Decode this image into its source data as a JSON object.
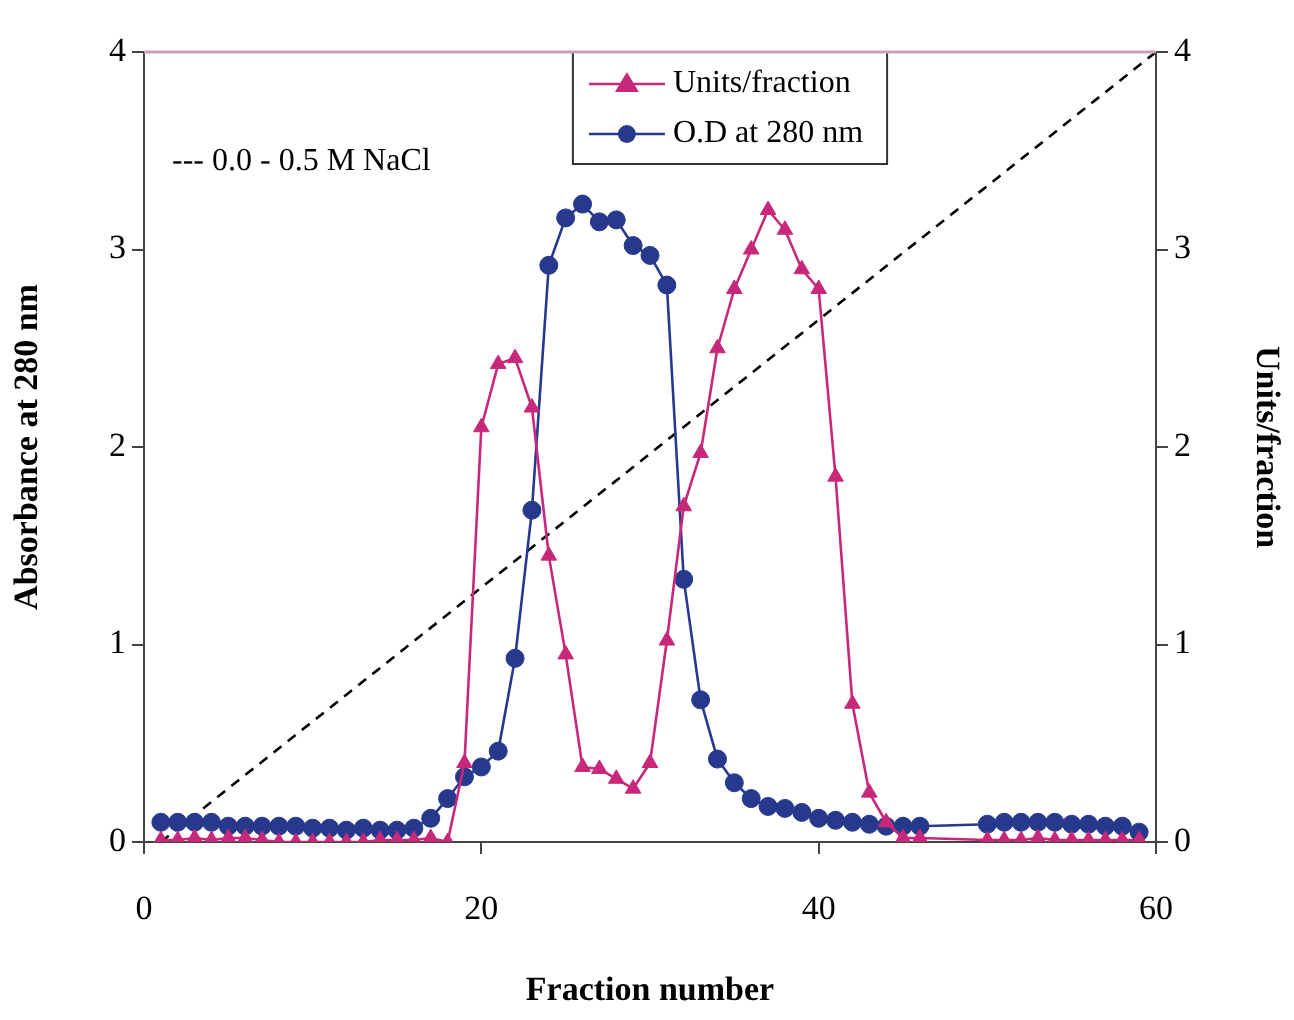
{
  "chart_data": {
    "type": "line",
    "xlabel": "Fraction number",
    "ylabel": "Absorbance at 280 nm",
    "y2label": "Units/fraction",
    "annotations": [
      "--- 0.0 - 0.5 M NaCl"
    ],
    "xlim": [
      0,
      60
    ],
    "xticks": [
      0,
      20,
      40,
      60
    ],
    "ylim": [
      0,
      4
    ],
    "yticks": [
      0,
      1,
      2,
      3,
      4
    ],
    "y2lim": [
      0,
      4
    ],
    "y2ticks": [
      0,
      1,
      2,
      3,
      4
    ],
    "grid": false,
    "legend": "top",
    "series": [
      {
        "name": "Units/fraction",
        "color": "#c8287a",
        "axis": "y2",
        "marker": "triangle",
        "x": [
          1,
          2,
          3,
          4,
          5,
          6,
          7,
          8,
          9,
          10,
          11,
          12,
          13,
          14,
          15,
          16,
          17,
          18,
          19,
          20,
          21,
          22,
          23,
          24,
          25,
          26,
          27,
          28,
          29,
          30,
          31,
          32,
          33,
          34,
          35,
          36,
          37,
          38,
          39,
          40,
          41,
          42,
          43,
          44,
          45,
          46,
          50,
          51,
          52,
          53,
          54,
          55,
          56,
          57,
          58,
          59
        ],
        "values": [
          0.01,
          0.01,
          0.02,
          0.01,
          0.02,
          0.02,
          0.01,
          0,
          0,
          0,
          0,
          0,
          0,
          0.01,
          0.01,
          0.01,
          0.02,
          0,
          0.4,
          2.1,
          2.42,
          2.45,
          2.2,
          1.45,
          0.95,
          0.38,
          0.37,
          0.32,
          0.27,
          0.4,
          1.02,
          1.7,
          1.97,
          2.5,
          2.8,
          3.0,
          3.2,
          3.1,
          2.9,
          2.8,
          1.85,
          0.7,
          0.25,
          0.1,
          0.02,
          0.02,
          0.01,
          0.01,
          0.01,
          0.02,
          0.01,
          0.01,
          0.01,
          0.01,
          0.01,
          0.01
        ]
      },
      {
        "name": "O.D at 280 nm",
        "color": "#27398c",
        "marker": "circle",
        "x": [
          1,
          2,
          3,
          4,
          5,
          6,
          7,
          8,
          9,
          10,
          11,
          12,
          13,
          14,
          15,
          16,
          17,
          18,
          19,
          20,
          21,
          22,
          23,
          24,
          25,
          26,
          27,
          28,
          29,
          30,
          31,
          32,
          33,
          34,
          35,
          36,
          37,
          38,
          39,
          40,
          41,
          42,
          43,
          44,
          45,
          46,
          50,
          51,
          52,
          53,
          54,
          55,
          56,
          57,
          58,
          59
        ],
        "values": [
          0.1,
          0.1,
          0.1,
          0.1,
          0.08,
          0.08,
          0.08,
          0.08,
          0.08,
          0.07,
          0.07,
          0.06,
          0.07,
          0.06,
          0.06,
          0.07,
          0.12,
          0.22,
          0.33,
          0.38,
          0.46,
          0.93,
          1.68,
          2.92,
          3.16,
          3.23,
          3.14,
          3.15,
          3.02,
          2.97,
          2.82,
          1.33,
          0.72,
          0.42,
          0.3,
          0.22,
          0.18,
          0.17,
          0.15,
          0.12,
          0.11,
          0.1,
          0.09,
          0.08,
          0.08,
          0.08,
          0.09,
          0.1,
          0.1,
          0.1,
          0.1,
          0.09,
          0.09,
          0.08,
          0.08,
          0.05
        ]
      },
      {
        "color": "#000000",
        "marker": "none",
        "line_style": "dashed",
        "x": [
          1,
          60
        ],
        "values": [
          0,
          4
        ]
      }
    ]
  }
}
